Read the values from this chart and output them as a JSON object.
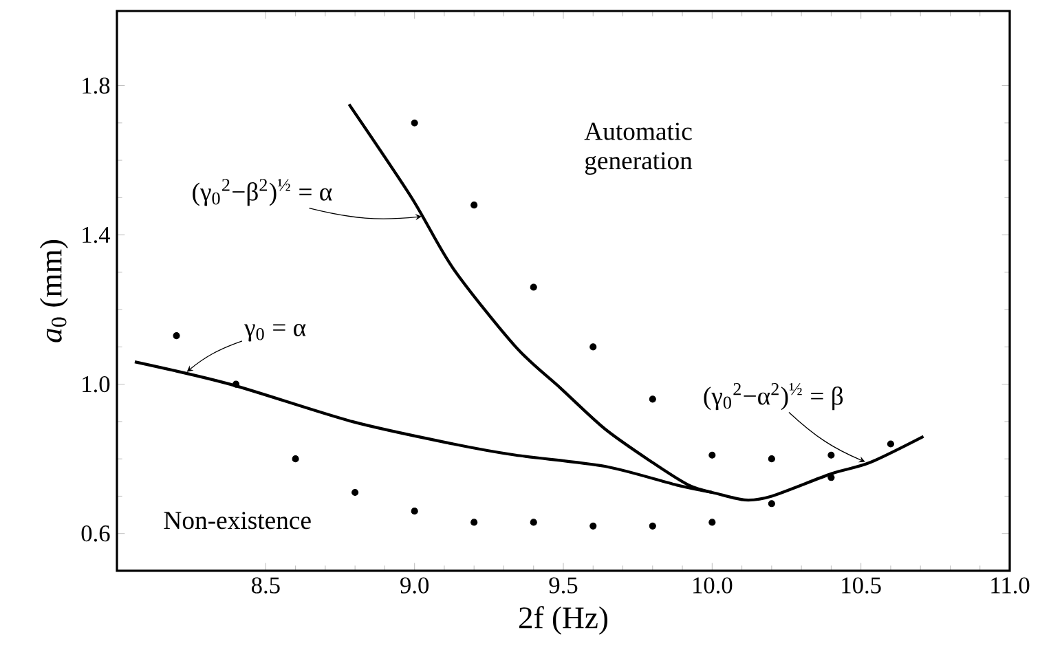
{
  "chart_data": {
    "type": "scatter",
    "xlabel": "2f (Hz)",
    "ylabel": "*a*$_{0}$ (mm)",
    "xlim": [
      8.0,
      11.0
    ],
    "ylim": [
      0.5,
      2.0
    ],
    "xticks": [
      {
        "value": 8.5,
        "label": "8.5"
      },
      {
        "value": 9,
        "label": "9.0"
      },
      {
        "value": 9.5,
        "label": "9.5"
      },
      {
        "value": 10,
        "label": "10.0"
      },
      {
        "value": 10.5,
        "label": "10.5"
      },
      {
        "value": 11,
        "label": "11.0"
      }
    ],
    "yticks": [
      {
        "value": 0.6,
        "label": "0.6"
      },
      {
        "value": 1,
        "label": "1.0"
      },
      {
        "value": 1.4,
        "label": "1.4"
      },
      {
        "value": 1.8,
        "label": "1.8"
      }
    ],
    "annotations": [
      "Automatic generation",
      "Non-existence",
      {
        "text": "γ$_{0}$ = α",
        "x": 8.23,
        "y": 1.03
      },
      {
        "text": "(γ$_{0}$$^{2}$−β$^{2}$)$^{½}$ = α",
        "x": 9.03,
        "y": 1.45
      },
      {
        "text": "(γ$_{0}$$^{2}$−α$^{2}$)$^{½}$ = β",
        "x": 10.52,
        "y": 0.79
      }
    ],
    "series": [
      {
        "color": "#000000",
        "marker": "circle",
        "x": [
          8.2,
          8.4,
          8.6,
          8.8,
          9.0,
          9.2,
          9.0,
          9.2,
          9.4,
          9.4,
          9.6,
          9.6,
          9.8,
          9.8,
          10.0,
          10.0,
          10.2,
          10.2,
          10.4,
          10.4,
          10.6
        ],
        "values": [
          1.13,
          1.0,
          0.8,
          0.71,
          0.66,
          0.63,
          1.7,
          1.48,
          1.26,
          0.63,
          1.1,
          0.62,
          0.96,
          0.62,
          0.81,
          0.63,
          0.8,
          0.68,
          0.81,
          0.75,
          0.84
        ]
      },
      {
        "type": "line",
        "color": "#000000",
        "marker": "none",
        "line_style": "solid",
        "x": [
          8.06,
          8.38,
          8.79,
          9.13,
          9.34,
          9.64,
          9.88,
          10.0,
          10.11,
          10.2,
          10.4,
          10.53,
          10.71
        ],
        "values": [
          1.06,
          1.0,
          0.9,
          0.84,
          0.81,
          0.78,
          0.73,
          0.71,
          0.69,
          0.7,
          0.76,
          0.79,
          0.86
        ]
      },
      {
        "type": "line",
        "color": "#000000",
        "marker": "none",
        "line_style": "solid",
        "x": [
          8.78,
          8.99,
          9.13,
          9.34,
          9.49,
          9.64,
          9.8,
          9.92,
          10.0
        ],
        "values": [
          1.75,
          1.5,
          1.31,
          1.1,
          0.99,
          0.88,
          0.79,
          0.73,
          0.71
        ]
      }
    ]
  }
}
